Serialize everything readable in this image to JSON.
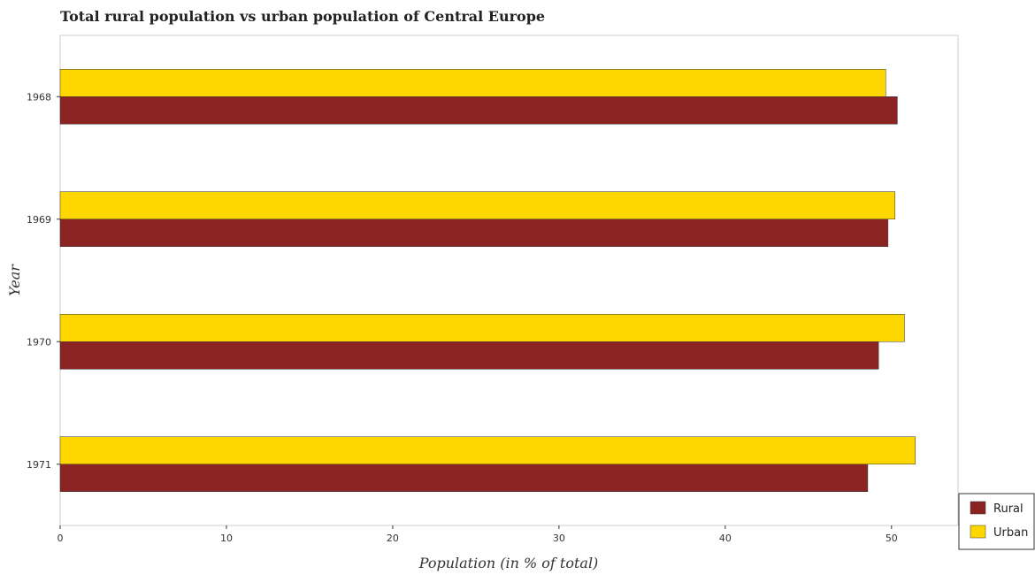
{
  "chart_data": {
    "type": "bar",
    "orientation": "horizontal",
    "title": "Total rural population vs urban population of Central Europe",
    "xlabel": "Population (in % of total)",
    "ylabel": "Year",
    "categories": [
      "1968",
      "1969",
      "1970",
      "1971"
    ],
    "series": [
      {
        "name": "Rural",
        "color": "#8b2323",
        "values": [
          50.35,
          49.79,
          49.22,
          48.57
        ]
      },
      {
        "name": "Urban",
        "color": "#ffd700",
        "values": [
          49.65,
          50.21,
          50.78,
          51.43
        ]
      }
    ],
    "xlim": [
      0,
      54
    ],
    "xticks": [
      0,
      10,
      20,
      30,
      40,
      50
    ],
    "legend_position": "bottom-right",
    "grid": false
  }
}
